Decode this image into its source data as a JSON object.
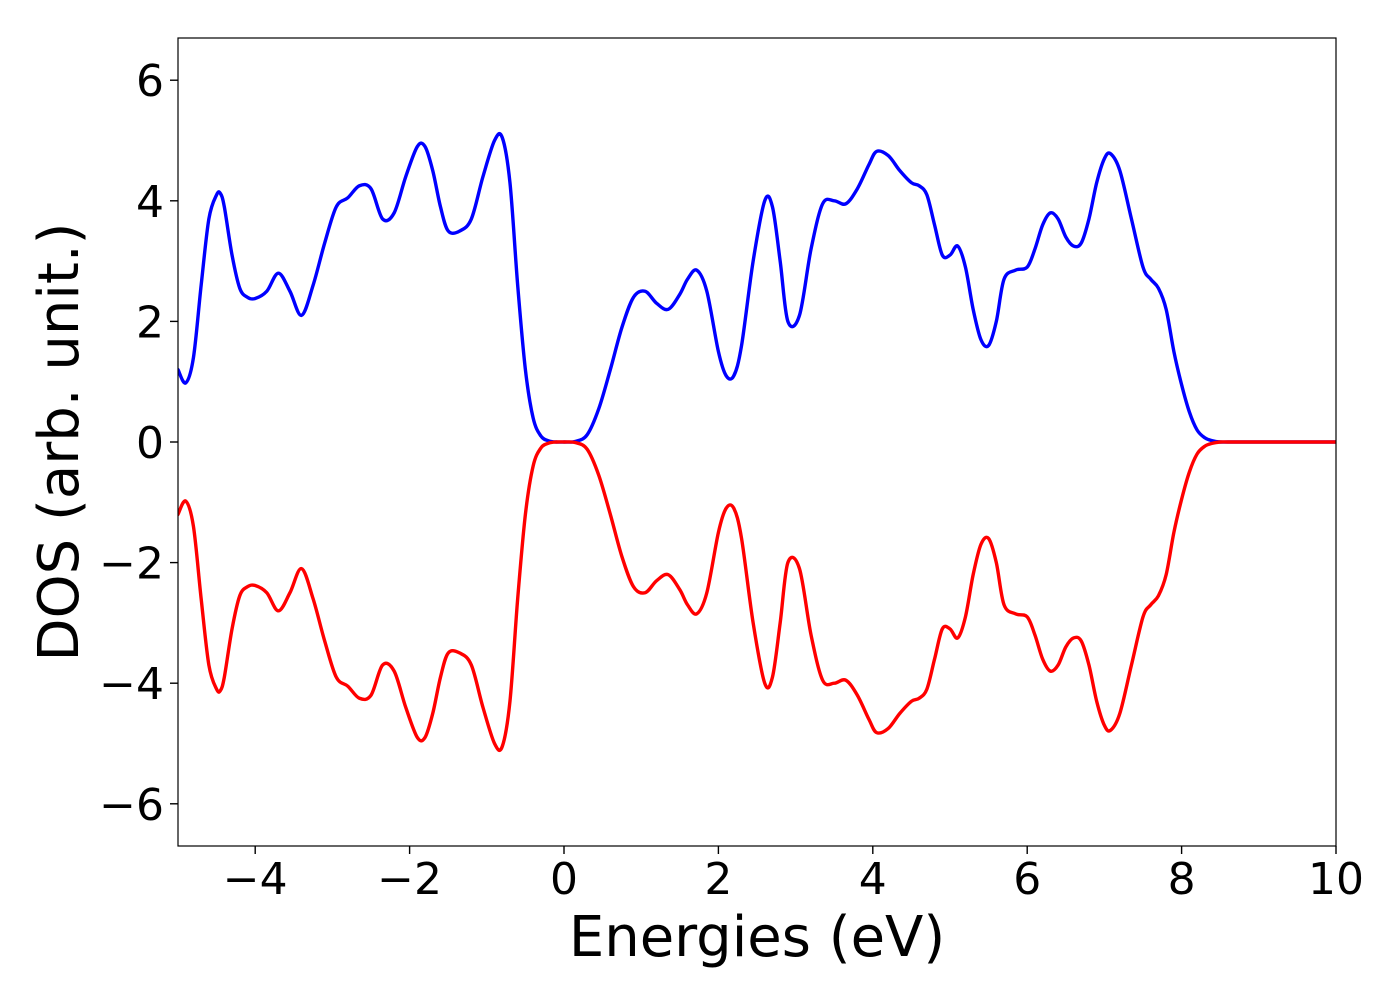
{
  "chart_data": {
    "type": "line",
    "title": "",
    "xlabel": "Energies (eV)",
    "ylabel": "DOS (arb. unit.)",
    "xlim": [
      -5,
      10
    ],
    "ylim": [
      -6.7,
      6.7
    ],
    "xticks": [
      -4,
      -2,
      0,
      2,
      4,
      6,
      8,
      10
    ],
    "yticks": [
      -6,
      -4,
      -2,
      0,
      2,
      4,
      6
    ],
    "xtick_labels": [
      "−4",
      "−2",
      "0",
      "2",
      "4",
      "6",
      "8",
      "10"
    ],
    "ytick_labels": [
      "−6",
      "−4",
      "−2",
      "0",
      "2",
      "4",
      "6"
    ],
    "grid": false,
    "legend": "none",
    "series": [
      {
        "color": "#0000ff",
        "x": [
          -5.0,
          -4.9,
          -4.8,
          -4.7,
          -4.6,
          -4.5,
          -4.45,
          -4.4,
          -4.3,
          -4.2,
          -4.1,
          -4.0,
          -3.85,
          -3.7,
          -3.55,
          -3.4,
          -3.25,
          -3.1,
          -2.95,
          -2.8,
          -2.65,
          -2.5,
          -2.35,
          -2.2,
          -2.05,
          -1.9,
          -1.8,
          -1.7,
          -1.6,
          -1.5,
          -1.35,
          -1.2,
          -1.05,
          -0.9,
          -0.8,
          -0.7,
          -0.6,
          -0.5,
          -0.4,
          -0.3,
          -0.2,
          -0.1,
          0.0,
          0.15,
          0.3,
          0.45,
          0.6,
          0.75,
          0.9,
          1.05,
          1.2,
          1.35,
          1.5,
          1.6,
          1.72,
          1.85,
          2.0,
          2.1,
          2.2,
          2.3,
          2.45,
          2.6,
          2.7,
          2.8,
          2.9,
          3.05,
          3.2,
          3.35,
          3.5,
          3.65,
          3.8,
          3.95,
          4.05,
          4.2,
          4.35,
          4.5,
          4.6,
          4.7,
          4.8,
          4.9,
          5.0,
          5.1,
          5.2,
          5.3,
          5.4,
          5.5,
          5.6,
          5.7,
          5.85,
          6.0,
          6.1,
          6.2,
          6.3,
          6.4,
          6.5,
          6.6,
          6.7,
          6.8,
          6.9,
          7.0,
          7.08,
          7.2,
          7.35,
          7.5,
          7.6,
          7.7,
          7.8,
          7.9,
          8.0,
          8.1,
          8.2,
          8.3,
          8.4,
          8.5,
          8.6,
          8.8,
          9.0,
          9.5,
          10.0
        ],
        "y": [
          1.2,
          0.98,
          1.4,
          2.6,
          3.7,
          4.1,
          4.12,
          3.9,
          3.1,
          2.55,
          2.4,
          2.38,
          2.5,
          2.8,
          2.5,
          2.1,
          2.6,
          3.3,
          3.9,
          4.05,
          4.25,
          4.2,
          3.7,
          3.8,
          4.4,
          4.9,
          4.9,
          4.5,
          3.9,
          3.5,
          3.5,
          3.7,
          4.4,
          5.0,
          5.05,
          4.3,
          2.6,
          1.2,
          0.4,
          0.1,
          0.02,
          0.0,
          0.0,
          0.01,
          0.12,
          0.55,
          1.2,
          1.9,
          2.4,
          2.5,
          2.3,
          2.2,
          2.45,
          2.7,
          2.85,
          2.5,
          1.5,
          1.1,
          1.1,
          1.6,
          3.0,
          4.0,
          3.9,
          3.0,
          2.0,
          2.1,
          3.2,
          3.95,
          4.0,
          3.95,
          4.2,
          4.6,
          4.82,
          4.75,
          4.5,
          4.3,
          4.25,
          4.1,
          3.6,
          3.1,
          3.1,
          3.25,
          2.9,
          2.2,
          1.7,
          1.6,
          2.0,
          2.7,
          2.85,
          2.9,
          3.2,
          3.6,
          3.8,
          3.7,
          3.4,
          3.25,
          3.3,
          3.7,
          4.3,
          4.7,
          4.78,
          4.5,
          3.7,
          2.9,
          2.7,
          2.55,
          2.2,
          1.5,
          0.95,
          0.5,
          0.2,
          0.07,
          0.02,
          0.0,
          0.0,
          0.0,
          0.0,
          0.0,
          0.0
        ]
      },
      {
        "color": "#ff0000",
        "x": [
          -5.0,
          -4.9,
          -4.8,
          -4.7,
          -4.6,
          -4.5,
          -4.45,
          -4.4,
          -4.3,
          -4.2,
          -4.1,
          -4.0,
          -3.85,
          -3.7,
          -3.55,
          -3.4,
          -3.25,
          -3.1,
          -2.95,
          -2.8,
          -2.65,
          -2.5,
          -2.35,
          -2.2,
          -2.05,
          -1.9,
          -1.8,
          -1.7,
          -1.6,
          -1.5,
          -1.35,
          -1.2,
          -1.05,
          -0.9,
          -0.8,
          -0.7,
          -0.6,
          -0.5,
          -0.4,
          -0.3,
          -0.2,
          -0.1,
          0.0,
          0.15,
          0.3,
          0.45,
          0.6,
          0.75,
          0.9,
          1.05,
          1.2,
          1.35,
          1.5,
          1.6,
          1.72,
          1.85,
          2.0,
          2.1,
          2.2,
          2.3,
          2.45,
          2.6,
          2.7,
          2.8,
          2.9,
          3.05,
          3.2,
          3.35,
          3.5,
          3.65,
          3.8,
          3.95,
          4.05,
          4.2,
          4.35,
          4.5,
          4.6,
          4.7,
          4.8,
          4.9,
          5.0,
          5.1,
          5.2,
          5.3,
          5.4,
          5.5,
          5.6,
          5.7,
          5.85,
          6.0,
          6.1,
          6.2,
          6.3,
          6.4,
          6.5,
          6.6,
          6.7,
          6.8,
          6.9,
          7.0,
          7.08,
          7.2,
          7.35,
          7.5,
          7.6,
          7.7,
          7.8,
          7.9,
          8.0,
          8.1,
          8.2,
          8.3,
          8.4,
          8.5,
          8.6,
          8.8,
          9.0,
          9.5,
          10.0
        ],
        "y": [
          -1.2,
          -0.98,
          -1.4,
          -2.6,
          -3.7,
          -4.1,
          -4.12,
          -3.9,
          -3.1,
          -2.55,
          -2.4,
          -2.38,
          -2.5,
          -2.8,
          -2.5,
          -2.1,
          -2.6,
          -3.3,
          -3.9,
          -4.05,
          -4.25,
          -4.2,
          -3.7,
          -3.8,
          -4.4,
          -4.9,
          -4.9,
          -4.5,
          -3.9,
          -3.5,
          -3.5,
          -3.7,
          -4.4,
          -5.0,
          -5.05,
          -4.3,
          -2.6,
          -1.2,
          -0.4,
          -0.1,
          -0.02,
          0.0,
          0.0,
          -0.01,
          -0.12,
          -0.55,
          -1.2,
          -1.9,
          -2.4,
          -2.5,
          -2.3,
          -2.2,
          -2.45,
          -2.7,
          -2.85,
          -2.5,
          -1.5,
          -1.1,
          -1.1,
          -1.6,
          -3.0,
          -4.0,
          -3.9,
          -3.0,
          -2.0,
          -2.1,
          -3.2,
          -3.95,
          -4.0,
          -3.95,
          -4.2,
          -4.6,
          -4.82,
          -4.75,
          -4.5,
          -4.3,
          -4.25,
          -4.1,
          -3.6,
          -3.1,
          -3.1,
          -3.25,
          -2.9,
          -2.2,
          -1.7,
          -1.6,
          -2.0,
          -2.7,
          -2.85,
          -2.9,
          -3.2,
          -3.6,
          -3.8,
          -3.7,
          -3.4,
          -3.25,
          -3.3,
          -3.7,
          -4.3,
          -4.7,
          -4.78,
          -4.5,
          -3.7,
          -2.9,
          -2.7,
          -2.55,
          -2.2,
          -1.5,
          -0.95,
          -0.5,
          -0.2,
          -0.07,
          -0.02,
          0.0,
          0.0,
          0.0,
          0.0,
          0.0,
          0.0
        ]
      }
    ]
  }
}
